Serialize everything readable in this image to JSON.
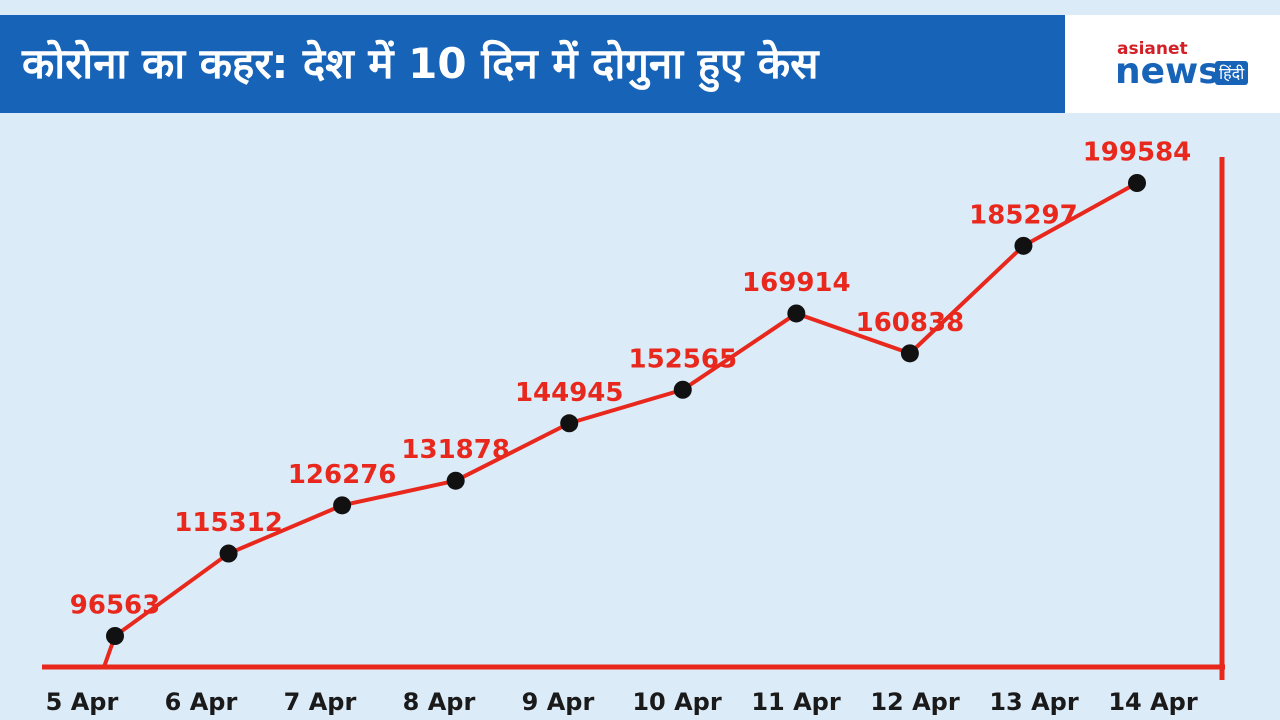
{
  "logo": {
    "top": "asianet",
    "main": "news",
    "lang": "हिंदी"
  },
  "chart_data": {
    "type": "line",
    "title": "कोरोना का कहर: देश में 10 दिन में दोगुना हुए केस",
    "categories": [
      "5 Apr",
      "6 Apr",
      "7 Apr",
      "8 Apr",
      "9 Apr",
      "10 Apr",
      "11 Apr",
      "12 Apr",
      "13 Apr",
      "14 Apr"
    ],
    "values": [
      96563,
      115312,
      126276,
      131878,
      144945,
      152565,
      169914,
      160838,
      185297,
      199584
    ],
    "color": "#e8281c"
  }
}
